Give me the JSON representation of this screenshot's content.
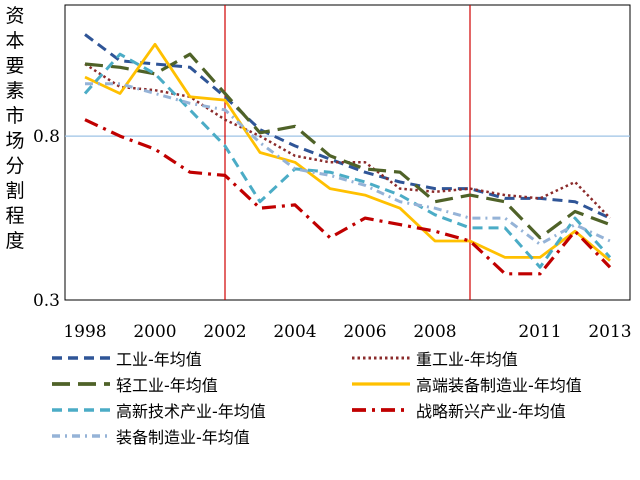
{
  "chart_data": {
    "type": "line",
    "title": "",
    "xlabel": "",
    "ylabel": "资本要素市场分割程度",
    "x": [
      1998,
      1999,
      2000,
      2001,
      2002,
      2003,
      2004,
      2005,
      2006,
      2007,
      2008,
      2009,
      2010,
      2011,
      2012,
      2013
    ],
    "x_tick_labels": [
      "1998",
      "2000",
      "2002",
      "2004",
      "2006",
      "2008",
      "2011",
      "2013"
    ],
    "y_tick_labels": [
      "0.8",
      "0.3"
    ],
    "ylim": [
      0.3,
      1.2
    ],
    "reference_hline": 0.8,
    "vertical_markers": [
      2002,
      2009
    ],
    "series": [
      {
        "name": "工业-年均值",
        "color": "#2f5597",
        "dash": "dash",
        "values": [
          1.11,
          1.03,
          1.02,
          1.01,
          0.92,
          0.82,
          0.77,
          0.73,
          0.69,
          0.66,
          0.64,
          0.64,
          0.61,
          0.61,
          0.6,
          0.55
        ]
      },
      {
        "name": "重工业-年均值",
        "color": "#8b2b2b",
        "dash": "dot",
        "values": [
          1.02,
          0.95,
          0.94,
          0.92,
          0.85,
          0.8,
          0.74,
          0.72,
          0.72,
          0.64,
          0.63,
          0.64,
          0.62,
          0.61,
          0.66,
          0.55
        ]
      },
      {
        "name": "轻工业-年均值",
        "color": "#4f6228",
        "dash": "longdash",
        "values": [
          1.02,
          1.01,
          0.99,
          1.05,
          0.93,
          0.81,
          0.83,
          0.74,
          0.7,
          0.69,
          0.6,
          0.62,
          0.6,
          0.49,
          0.57,
          0.53
        ]
      },
      {
        "name": "高端装备制造业-年均值",
        "color": "#ffc000",
        "dash": "solid",
        "values": [
          0.98,
          0.93,
          1.08,
          0.92,
          0.91,
          0.75,
          0.72,
          0.64,
          0.62,
          0.58,
          0.48,
          0.48,
          0.43,
          0.43,
          0.51,
          0.42
        ]
      },
      {
        "name": "高新技术产业-年均值",
        "color": "#4bacc6",
        "dash": "dash",
        "values": [
          0.93,
          1.05,
          0.99,
          0.88,
          0.77,
          0.6,
          0.7,
          0.69,
          0.66,
          0.62,
          0.56,
          0.52,
          0.52,
          0.4,
          0.55,
          0.43
        ]
      },
      {
        "name": "战略新兴产业-年均值",
        "color": "#c00000",
        "dash": "dashdot",
        "values": [
          0.85,
          0.8,
          0.76,
          0.69,
          0.68,
          0.58,
          0.59,
          0.49,
          0.55,
          0.53,
          0.51,
          0.48,
          0.38,
          0.38,
          0.51,
          0.4
        ]
      },
      {
        "name": "装备制造业-年均值",
        "color": "#95b3d7",
        "dash": "dashdot2",
        "values": [
          0.96,
          0.96,
          0.93,
          0.9,
          0.88,
          0.78,
          0.7,
          0.68,
          0.65,
          0.6,
          0.58,
          0.55,
          0.55,
          0.47,
          0.53,
          0.48
        ]
      }
    ]
  }
}
